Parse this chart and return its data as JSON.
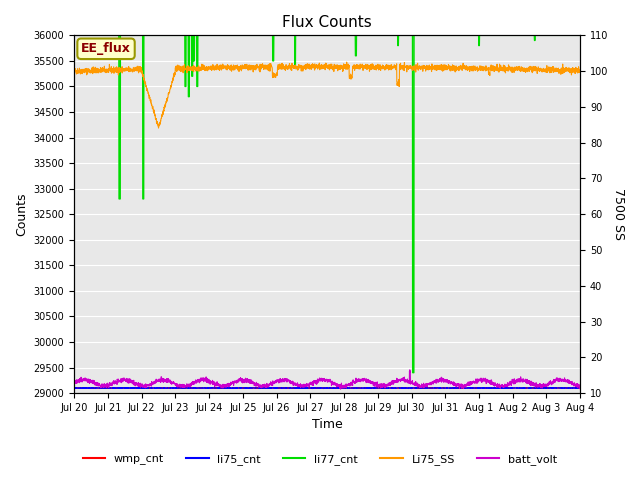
{
  "title": "Flux Counts",
  "xlabel": "Time",
  "ylabel_left": "Counts",
  "ylabel_right": "7500 SS",
  "ylim_left": [
    29000,
    36000
  ],
  "ylim_right": [
    10,
    110
  ],
  "yticks_left": [
    29000,
    29500,
    30000,
    30500,
    31000,
    31500,
    32000,
    32500,
    33000,
    33500,
    34000,
    34500,
    35000,
    35500,
    36000
  ],
  "yticks_right": [
    10,
    20,
    30,
    40,
    50,
    60,
    70,
    80,
    90,
    100,
    110
  ],
  "xtick_labels": [
    "Jul 20",
    "Jul 21",
    "Jul 22",
    "Jul 23",
    "Jul 24",
    "Jul 25",
    "Jul 26",
    "Jul 27",
    "Jul 28",
    "Jul 29",
    "Jul 30",
    "Jul 31",
    "Aug 1",
    "Aug 2",
    "Aug 3",
    "Aug 4"
  ],
  "annotation_text": "EE_flux",
  "bg_color": "#e8e8e8",
  "grid_color": "#ffffff",
  "legend_entries": [
    "wmp_cnt",
    "li75_cnt",
    "li77_cnt",
    "Li75_SS",
    "batt_volt"
  ],
  "legend_colors": [
    "#ff0000",
    "#0000ff",
    "#00cc00",
    "#ff9900",
    "#cc00cc"
  ],
  "li77_color": "#00dd00",
  "li75ss_color": "#ff9900",
  "batt_color": "#cc00cc",
  "wmp_color": "#ff0000",
  "li75_color": "#0000ff",
  "li77_base": 36000,
  "li75ss_base": 35300,
  "batt_base": 29200,
  "wmp_base": 29100,
  "li75_base": 29100
}
